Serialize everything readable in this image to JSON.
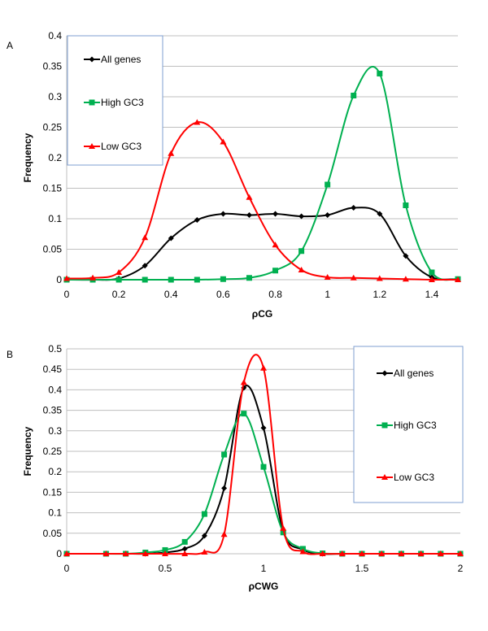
{
  "chart_data": [
    {
      "type": "line",
      "panel_label": "A",
      "title": "",
      "xlabel": "ρCG",
      "ylabel": "Frequency",
      "xlim": [
        0,
        1.5
      ],
      "ylim": [
        0,
        0.4
      ],
      "xticks": [
        "0",
        "0.2",
        "0.4",
        "0.6",
        "0.8",
        "1",
        "1.2",
        "1.4"
      ],
      "xtick_values": [
        0,
        0.2,
        0.4,
        0.6,
        0.8,
        1,
        1.2,
        1.4
      ],
      "yticks": [
        "0",
        "0.05",
        "0.1",
        "0.15",
        "0.2",
        "0.25",
        "0.3",
        "0.35",
        "0.4"
      ],
      "ytick_values": [
        0,
        0.05,
        0.1,
        0.15,
        0.2,
        0.25,
        0.3,
        0.35,
        0.4
      ],
      "grid": true,
      "legend_placement": "top-left",
      "x": [
        0,
        0.1,
        0.2,
        0.3,
        0.4,
        0.5,
        0.6,
        0.7,
        0.8,
        0.9,
        1.0,
        1.1,
        1.2,
        1.3,
        1.4,
        1.5
      ],
      "series": [
        {
          "name": "All genes",
          "color": "#000000",
          "marker": "diamond",
          "values": [
            0,
            0,
            0.002,
            0.023,
            0.068,
            0.098,
            0.108,
            0.106,
            0.108,
            0.104,
            0.106,
            0.118,
            0.108,
            0.039,
            0.004,
            0.001
          ]
        },
        {
          "name": "High GC3",
          "color": "#00b050",
          "marker": "square",
          "values": [
            0,
            0,
            0,
            0,
            0,
            0,
            0.001,
            0.003,
            0.015,
            0.047,
            0.156,
            0.302,
            0.338,
            0.122,
            0.012,
            0.001
          ]
        },
        {
          "name": "Low GC3",
          "color": "#ff0000",
          "marker": "triangle",
          "values": [
            0.002,
            0.003,
            0.012,
            0.069,
            0.207,
            0.258,
            0.226,
            0.135,
            0.057,
            0.016,
            0.004,
            0.003,
            0.002,
            0.001,
            0,
            0
          ]
        }
      ]
    },
    {
      "type": "line",
      "panel_label": "B",
      "title": "",
      "xlabel": "ρCWG",
      "ylabel": "Frequency",
      "xlim": [
        0,
        2
      ],
      "ylim": [
        0,
        0.5
      ],
      "xticks": [
        "0",
        "0.5",
        "1",
        "1.5",
        "2"
      ],
      "xtick_values": [
        0,
        0.5,
        1,
        1.5,
        2
      ],
      "yticks": [
        "0",
        "0.05",
        "0.1",
        "0.15",
        "0.2",
        "0.25",
        "0.3",
        "0.35",
        "0.4",
        "0.45",
        "0.5"
      ],
      "ytick_values": [
        0,
        0.05,
        0.1,
        0.15,
        0.2,
        0.25,
        0.3,
        0.35,
        0.4,
        0.45,
        0.5
      ],
      "grid": true,
      "legend_placement": "top-right",
      "x": [
        0,
        0.2,
        0.3,
        0.4,
        0.5,
        0.6,
        0.7,
        0.8,
        0.9,
        1.0,
        1.1,
        1.2,
        1.3,
        1.4,
        1.5,
        1.6,
        1.7,
        1.8,
        1.9,
        2.0
      ],
      "series": [
        {
          "name": "All genes",
          "color": "#000000",
          "marker": "diamond",
          "values": [
            0,
            0,
            0,
            0,
            0.003,
            0.012,
            0.044,
            0.16,
            0.405,
            0.307,
            0.055,
            0.01,
            0,
            0,
            0,
            0,
            0,
            0,
            0,
            0
          ]
        },
        {
          "name": "High GC3",
          "color": "#00b050",
          "marker": "square",
          "values": [
            0,
            0,
            0,
            0.003,
            0.009,
            0.029,
            0.097,
            0.242,
            0.342,
            0.212,
            0.052,
            0.012,
            0.001,
            0,
            0,
            0,
            0,
            0,
            0,
            0
          ]
        },
        {
          "name": "Low GC3",
          "color": "#ff0000",
          "marker": "triangle",
          "values": [
            0,
            0,
            0,
            0,
            0,
            0,
            0.004,
            0.047,
            0.418,
            0.453,
            0.062,
            0.005,
            0,
            0,
            0,
            0,
            0,
            0,
            0,
            0
          ]
        }
      ]
    }
  ]
}
